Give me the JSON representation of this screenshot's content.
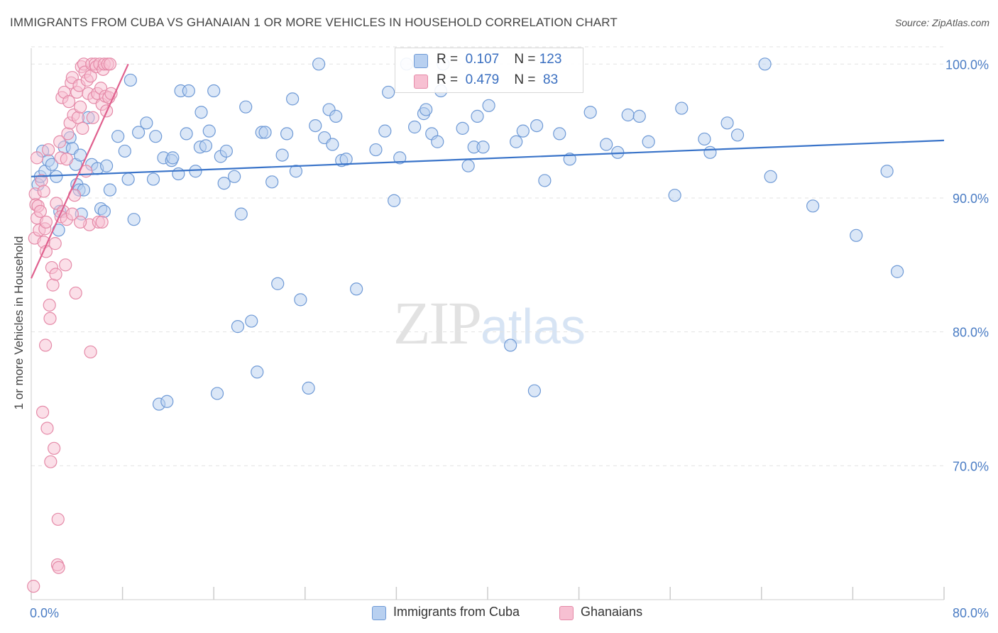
{
  "header": {
    "title": "IMMIGRANTS FROM CUBA VS GHANAIAN 1 OR MORE VEHICLES IN HOUSEHOLD CORRELATION CHART",
    "source": "Source: ZipAtlas.com"
  },
  "watermark": {
    "zip": "ZIP",
    "atlas": "atlas"
  },
  "legend_top": [
    {
      "r_label": "R =",
      "r_value": "0.107",
      "n_label": "N =",
      "n_value": "123"
    },
    {
      "r_label": "R =",
      "r_value": "0.479",
      "n_label": "N =",
      "n_value": " 83"
    }
  ],
  "legend_bottom": [
    {
      "label": "Immigrants from Cuba"
    },
    {
      "label": "Ghanaians"
    }
  ],
  "colors": {
    "cuba_fill": "#b8d0f0",
    "cuba_stroke": "#6f9ad6",
    "cuba_line": "#3a74c9",
    "ghana_fill": "#f7c0d2",
    "ghana_stroke": "#e58aa8",
    "ghana_line": "#e0608e",
    "grid": "#e3e3e3",
    "axis": "#cccccc"
  },
  "chart_data": {
    "type": "scatter",
    "title": "IMMIGRANTS FROM CUBA VS GHANAIAN 1 OR MORE VEHICLES IN HOUSEHOLD CORRELATION CHART",
    "xlabel": "",
    "ylabel": "1 or more Vehicles in Household",
    "xlim": [
      0,
      80
    ],
    "ylim": [
      60,
      101.5
    ],
    "x_tick_labels": [
      "0.0%",
      "80.0%"
    ],
    "y_ticks": [
      70,
      80,
      90,
      100
    ],
    "y_tick_labels": [
      "70.0%",
      "80.0%",
      "90.0%",
      "100.0%"
    ],
    "legend": "top-center",
    "series": [
      {
        "name": "Immigrants from Cuba",
        "R": 0.107,
        "N": 123,
        "trend": {
          "x": [
            0,
            80
          ],
          "y": [
            91.6,
            94.3
          ]
        },
        "points": [
          [
            0.6,
            91.0
          ],
          [
            0.8,
            91.6
          ],
          [
            1.0,
            93.5
          ],
          [
            1.2,
            92.0
          ],
          [
            1.5,
            92.8
          ],
          [
            1.8,
            92.5
          ],
          [
            2.2,
            91.6
          ],
          [
            2.4,
            87.6
          ],
          [
            2.5,
            89.0
          ],
          [
            2.9,
            93.8
          ],
          [
            3.4,
            94.5
          ],
          [
            3.6,
            93.7
          ],
          [
            3.9,
            92.5
          ],
          [
            4.0,
            91.0
          ],
          [
            4.2,
            90.6
          ],
          [
            4.3,
            93.2
          ],
          [
            4.4,
            88.8
          ],
          [
            4.6,
            90.6
          ],
          [
            5.0,
            96.0
          ],
          [
            5.3,
            92.5
          ],
          [
            5.8,
            92.2
          ],
          [
            6.1,
            89.2
          ],
          [
            6.4,
            89.0
          ],
          [
            6.6,
            92.4
          ],
          [
            6.9,
            90.6
          ],
          [
            7.6,
            94.6
          ],
          [
            8.2,
            93.5
          ],
          [
            8.5,
            91.4
          ],
          [
            8.7,
            98.8
          ],
          [
            9.0,
            88.4
          ],
          [
            9.4,
            94.9
          ],
          [
            10.1,
            95.6
          ],
          [
            10.7,
            91.4
          ],
          [
            10.9,
            94.6
          ],
          [
            11.2,
            74.6
          ],
          [
            11.6,
            93.0
          ],
          [
            11.9,
            74.8
          ],
          [
            12.3,
            92.8
          ],
          [
            12.4,
            93.0
          ],
          [
            12.9,
            91.8
          ],
          [
            13.1,
            98.0
          ],
          [
            13.6,
            94.8
          ],
          [
            13.8,
            98.0
          ],
          [
            14.4,
            92.0
          ],
          [
            14.9,
            96.4
          ],
          [
            14.8,
            93.8
          ],
          [
            15.3,
            93.9
          ],
          [
            15.6,
            95.0
          ],
          [
            16.0,
            98.0
          ],
          [
            16.3,
            75.4
          ],
          [
            16.6,
            93.1
          ],
          [
            16.9,
            91.1
          ],
          [
            17.1,
            93.5
          ],
          [
            17.8,
            91.6
          ],
          [
            18.1,
            80.4
          ],
          [
            18.4,
            88.8
          ],
          [
            18.8,
            96.8
          ],
          [
            19.3,
            80.8
          ],
          [
            19.8,
            77.0
          ],
          [
            20.2,
            94.9
          ],
          [
            20.5,
            94.9
          ],
          [
            21.1,
            91.2
          ],
          [
            21.6,
            83.6
          ],
          [
            22.0,
            93.2
          ],
          [
            22.4,
            94.8
          ],
          [
            22.9,
            97.4
          ],
          [
            23.2,
            92.0
          ],
          [
            23.6,
            82.4
          ],
          [
            24.3,
            75.8
          ],
          [
            24.9,
            95.4
          ],
          [
            25.2,
            100.0
          ],
          [
            25.7,
            94.5
          ],
          [
            26.1,
            96.6
          ],
          [
            26.4,
            94.0
          ],
          [
            26.7,
            96.1
          ],
          [
            27.2,
            92.8
          ],
          [
            27.6,
            92.9
          ],
          [
            28.5,
            83.2
          ],
          [
            30.2,
            93.6
          ],
          [
            31.0,
            95.0
          ],
          [
            31.3,
            97.9
          ],
          [
            31.8,
            89.8
          ],
          [
            32.3,
            93.0
          ],
          [
            32.9,
            100.0
          ],
          [
            33.6,
            95.3
          ],
          [
            34.4,
            96.3
          ],
          [
            34.6,
            96.6
          ],
          [
            35.1,
            94.8
          ],
          [
            35.6,
            94.2
          ],
          [
            35.9,
            98.0
          ],
          [
            36.1,
            100.0
          ],
          [
            37.8,
            95.2
          ],
          [
            38.3,
            92.4
          ],
          [
            38.8,
            93.8
          ],
          [
            39.1,
            96.1
          ],
          [
            39.6,
            93.8
          ],
          [
            40.1,
            96.9
          ],
          [
            42.0,
            79.0
          ],
          [
            42.5,
            94.2
          ],
          [
            43.1,
            95.0
          ],
          [
            44.1,
            75.6
          ],
          [
            44.3,
            95.4
          ],
          [
            45.0,
            91.3
          ],
          [
            46.3,
            94.8
          ],
          [
            47.2,
            92.9
          ],
          [
            49.0,
            96.4
          ],
          [
            50.4,
            94.0
          ],
          [
            51.4,
            93.4
          ],
          [
            52.3,
            96.2
          ],
          [
            53.3,
            96.1
          ],
          [
            54.1,
            94.2
          ],
          [
            56.4,
            90.2
          ],
          [
            57.0,
            96.7
          ],
          [
            59.0,
            94.4
          ],
          [
            59.5,
            93.4
          ],
          [
            61.0,
            95.6
          ],
          [
            61.9,
            94.7
          ],
          [
            64.3,
            100.0
          ],
          [
            64.8,
            91.6
          ],
          [
            68.5,
            89.4
          ],
          [
            72.3,
            87.2
          ],
          [
            75.0,
            92.0
          ],
          [
            75.9,
            84.5
          ]
        ]
      },
      {
        "name": "Ghanaians",
        "R": 0.479,
        "N": 83,
        "trend": {
          "x": [
            0,
            8.5
          ],
          "y": [
            84.0,
            100.0
          ]
        },
        "points": [
          [
            0.2,
            61.0
          ],
          [
            0.3,
            87.0
          ],
          [
            0.35,
            90.3
          ],
          [
            0.4,
            89.5
          ],
          [
            0.5,
            88.5
          ],
          [
            0.6,
            89.4
          ],
          [
            0.7,
            87.6
          ],
          [
            0.8,
            89.0
          ],
          [
            0.9,
            91.3
          ],
          [
            1.0,
            74.0
          ],
          [
            1.1,
            86.7
          ],
          [
            1.2,
            87.7
          ],
          [
            1.25,
            79.0
          ],
          [
            1.3,
            88.2
          ],
          [
            1.4,
            72.8
          ],
          [
            1.5,
            93.6
          ],
          [
            1.6,
            82.0
          ],
          [
            1.65,
            81.0
          ],
          [
            1.7,
            70.3
          ],
          [
            1.8,
            84.8
          ],
          [
            1.9,
            83.5
          ],
          [
            2.0,
            71.3
          ],
          [
            2.1,
            86.6
          ],
          [
            2.15,
            84.3
          ],
          [
            2.2,
            89.6
          ],
          [
            2.3,
            62.6
          ],
          [
            2.35,
            66.0
          ],
          [
            2.4,
            62.4
          ],
          [
            2.5,
            94.2
          ],
          [
            2.6,
            93.0
          ],
          [
            2.7,
            97.5
          ],
          [
            2.8,
            89.0
          ],
          [
            2.9,
            97.9
          ],
          [
            3.0,
            85.0
          ],
          [
            3.1,
            92.9
          ],
          [
            3.2,
            94.8
          ],
          [
            3.3,
            97.2
          ],
          [
            3.4,
            95.6
          ],
          [
            3.5,
            98.6
          ],
          [
            3.6,
            99.0
          ],
          [
            3.7,
            96.2
          ],
          [
            3.8,
            90.2
          ],
          [
            3.9,
            82.9
          ],
          [
            4.0,
            97.9
          ],
          [
            4.1,
            96.0
          ],
          [
            4.2,
            98.4
          ],
          [
            4.3,
            96.8
          ],
          [
            4.4,
            99.8
          ],
          [
            4.5,
            95.2
          ],
          [
            4.6,
            100.0
          ],
          [
            4.7,
            99.4
          ],
          [
            4.8,
            92.0
          ],
          [
            4.9,
            98.8
          ],
          [
            5.0,
            97.8
          ],
          [
            5.1,
            88.0
          ],
          [
            5.2,
            99.1
          ],
          [
            5.3,
            100.0
          ],
          [
            5.4,
            96.0
          ],
          [
            5.5,
            97.5
          ],
          [
            5.6,
            100.0
          ],
          [
            5.7,
            99.8
          ],
          [
            5.8,
            97.8
          ],
          [
            5.9,
            88.2
          ],
          [
            6.0,
            100.0
          ],
          [
            6.1,
            98.2
          ],
          [
            6.2,
            97.0
          ],
          [
            6.3,
            99.6
          ],
          [
            6.4,
            100.0
          ],
          [
            6.5,
            97.6
          ],
          [
            6.6,
            96.5
          ],
          [
            6.7,
            100.0
          ],
          [
            6.8,
            97.5
          ],
          [
            6.9,
            100.0
          ],
          [
            7.0,
            97.8
          ],
          [
            1.1,
            90.5
          ],
          [
            1.3,
            86.0
          ],
          [
            2.6,
            88.6
          ],
          [
            3.1,
            88.4
          ],
          [
            3.6,
            88.8
          ],
          [
            4.3,
            88.2
          ],
          [
            5.2,
            78.5
          ],
          [
            6.2,
            88.2
          ],
          [
            0.5,
            93.0
          ]
        ]
      }
    ]
  }
}
